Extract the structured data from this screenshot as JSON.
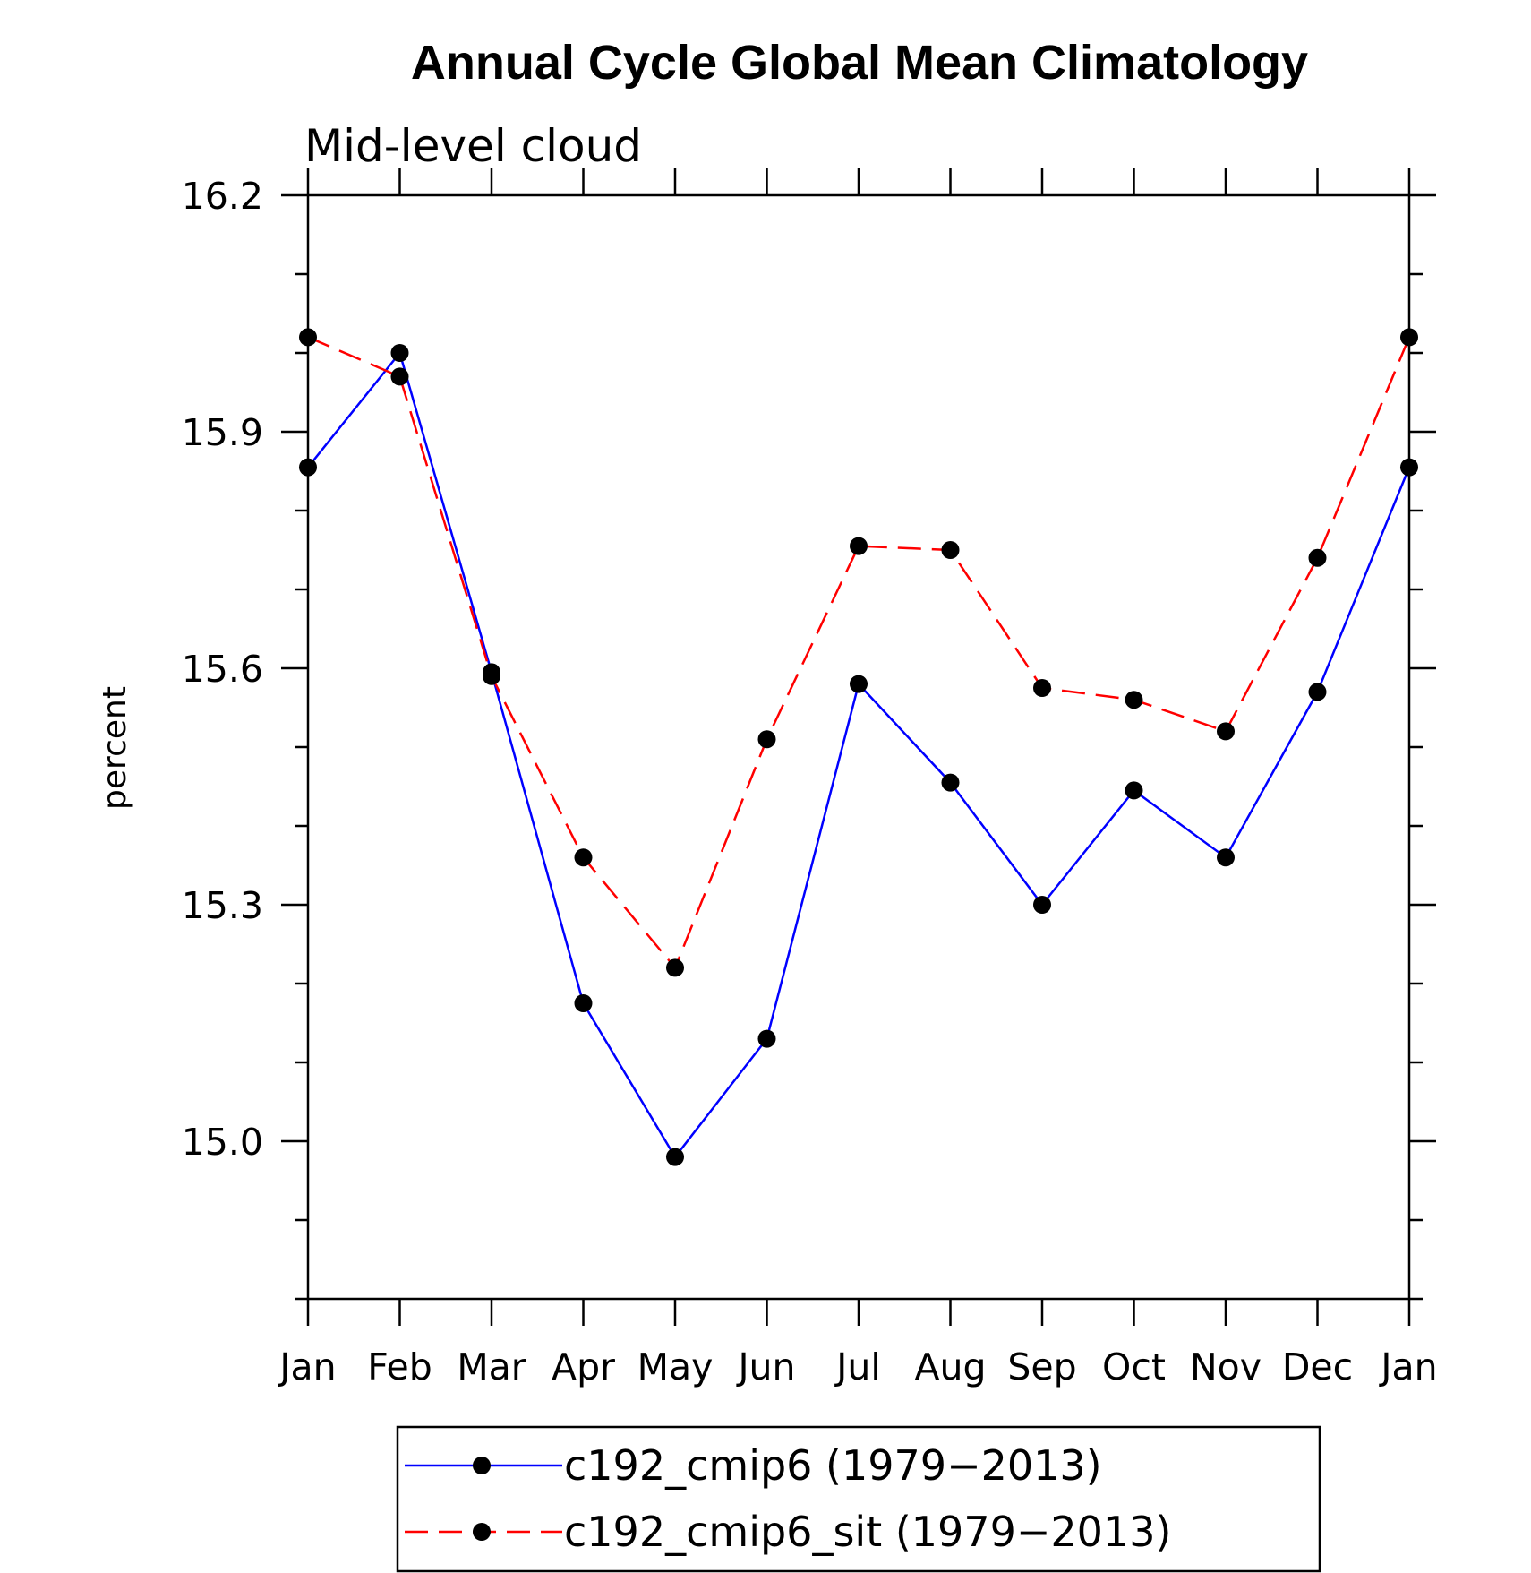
{
  "chart_data": {
    "type": "line",
    "title": "Annual Cycle Global Mean Climatology",
    "subtitle": "Mid-level cloud",
    "xlabel": "",
    "ylabel": "percent",
    "categories": [
      "Jan",
      "Feb",
      "Mar",
      "Apr",
      "May",
      "Jun",
      "Jul",
      "Aug",
      "Sep",
      "Oct",
      "Nov",
      "Dec",
      "Jan"
    ],
    "ylim": [
      14.8,
      16.2
    ],
    "yticks": [
      15.0,
      15.3,
      15.6,
      15.9,
      16.2
    ],
    "ytick_labels": [
      "15.0",
      "15.3",
      "15.6",
      "15.9",
      "16.2"
    ],
    "y_minor_step": 0.1,
    "legend_position": "bottom-center",
    "series": [
      {
        "name": "c192_cmip6 (1979-2013)",
        "label": "c192_cmip6 (1979−2013)",
        "color": "#0000ff",
        "dash": "solid",
        "marker_color": "#000000",
        "values": [
          15.855,
          16.0,
          15.595,
          15.175,
          14.98,
          15.13,
          15.58,
          15.455,
          15.3,
          15.445,
          15.36,
          15.57,
          15.855
        ]
      },
      {
        "name": "c192_cmip6_sit (1979-2013)",
        "label": "c192_cmip6_sit (1979−2013)",
        "color": "#ff0000",
        "dash": "dashed",
        "marker_color": "#000000",
        "values": [
          16.02,
          15.97,
          15.59,
          15.36,
          15.22,
          15.51,
          15.755,
          15.75,
          15.575,
          15.56,
          15.52,
          15.74,
          16.02
        ]
      }
    ]
  }
}
